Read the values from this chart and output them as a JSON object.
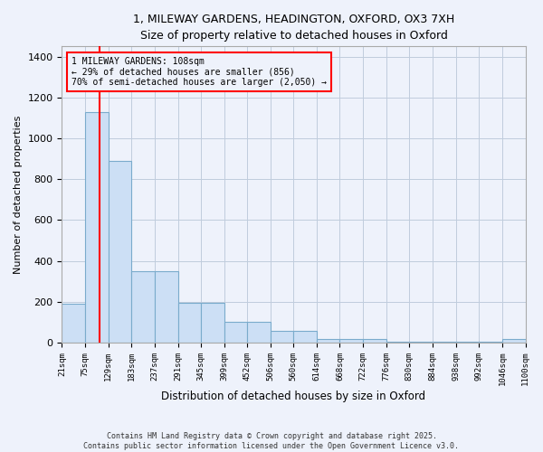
{
  "title_line1": "1, MILEWAY GARDENS, HEADINGTON, OXFORD, OX3 7XH",
  "title_line2": "Size of property relative to detached houses in Oxford",
  "xlabel": "Distribution of detached houses by size in Oxford",
  "ylabel": "Number of detached properties",
  "bin_edges": [
    21,
    75,
    129,
    183,
    237,
    291,
    345,
    399,
    452,
    506,
    560,
    614,
    668,
    722,
    776,
    830,
    884,
    938,
    992,
    1046,
    1100
  ],
  "bar_heights": [
    190,
    1130,
    890,
    350,
    350,
    195,
    195,
    100,
    100,
    60,
    60,
    20,
    20,
    20,
    5,
    5,
    5,
    5,
    5,
    20
  ],
  "bar_color": "#ccdff5",
  "bar_edge_color": "#7aabcc",
  "property_size": 108,
  "property_line_color": "red",
  "annotation_text": "1 MILEWAY GARDENS: 108sqm\n← 29% of detached houses are smaller (856)\n70% of semi-detached houses are larger (2,050) →",
  "annotation_box_color": "red",
  "ylim": [
    0,
    1450
  ],
  "yticks": [
    0,
    200,
    400,
    600,
    800,
    1000,
    1200,
    1400
  ],
  "footer_line1": "Contains HM Land Registry data © Crown copyright and database right 2025.",
  "footer_line2": "Contains public sector information licensed under the Open Government Licence v3.0.",
  "background_color": "#eef2fb",
  "grid_color": "#c0ccdd",
  "fig_width": 6.0,
  "fig_height": 5.0,
  "title_fontsize": 9.0,
  "ylabel_fontsize": 8.0,
  "xlabel_fontsize": 8.5,
  "ytick_fontsize": 8.0,
  "xtick_fontsize": 6.5,
  "annot_fontsize": 7.0,
  "footer_fontsize": 6.0
}
